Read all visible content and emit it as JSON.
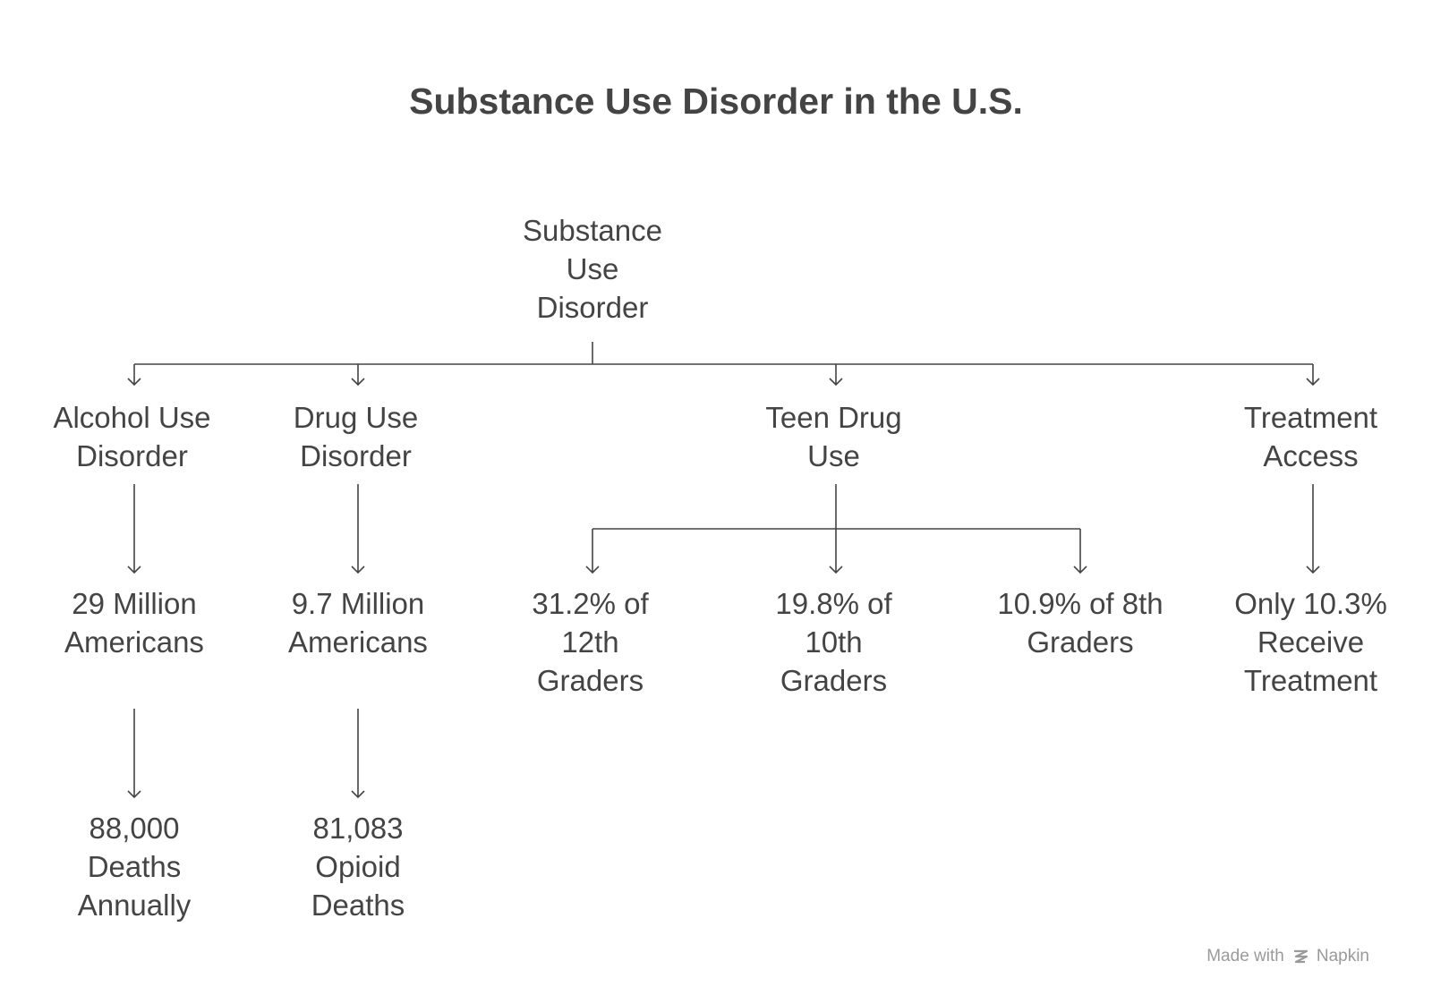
{
  "title": "Substance Use Disorder in the U.S.",
  "root": "Substance\nUse\nDisorder",
  "branches": [
    {
      "label": "Alcohol Use\nDisorder",
      "children": [
        "29 Million\nAmericans",
        "88,000\nDeaths\nAnnually"
      ]
    },
    {
      "label": "Drug Use\nDisorder",
      "children": [
        "9.7 Million\nAmericans",
        "81,083\nOpioid\nDeaths"
      ]
    },
    {
      "label": "Teen Drug\nUse",
      "children": [
        "31.2% of\n12th\nGraders",
        "19.8% of\n10th\nGraders",
        "10.9% of 8th\nGraders"
      ]
    },
    {
      "label": "Treatment\nAccess",
      "children": [
        "Only 10.3%\nReceive\nTreatment"
      ]
    }
  ],
  "watermark": {
    "prefix": "Made with",
    "brand": "Napkin",
    "icon": "napkin-logo-icon"
  },
  "colors": {
    "text": "#444444",
    "edge": "#444444",
    "watermark": "#9a9a9a"
  }
}
